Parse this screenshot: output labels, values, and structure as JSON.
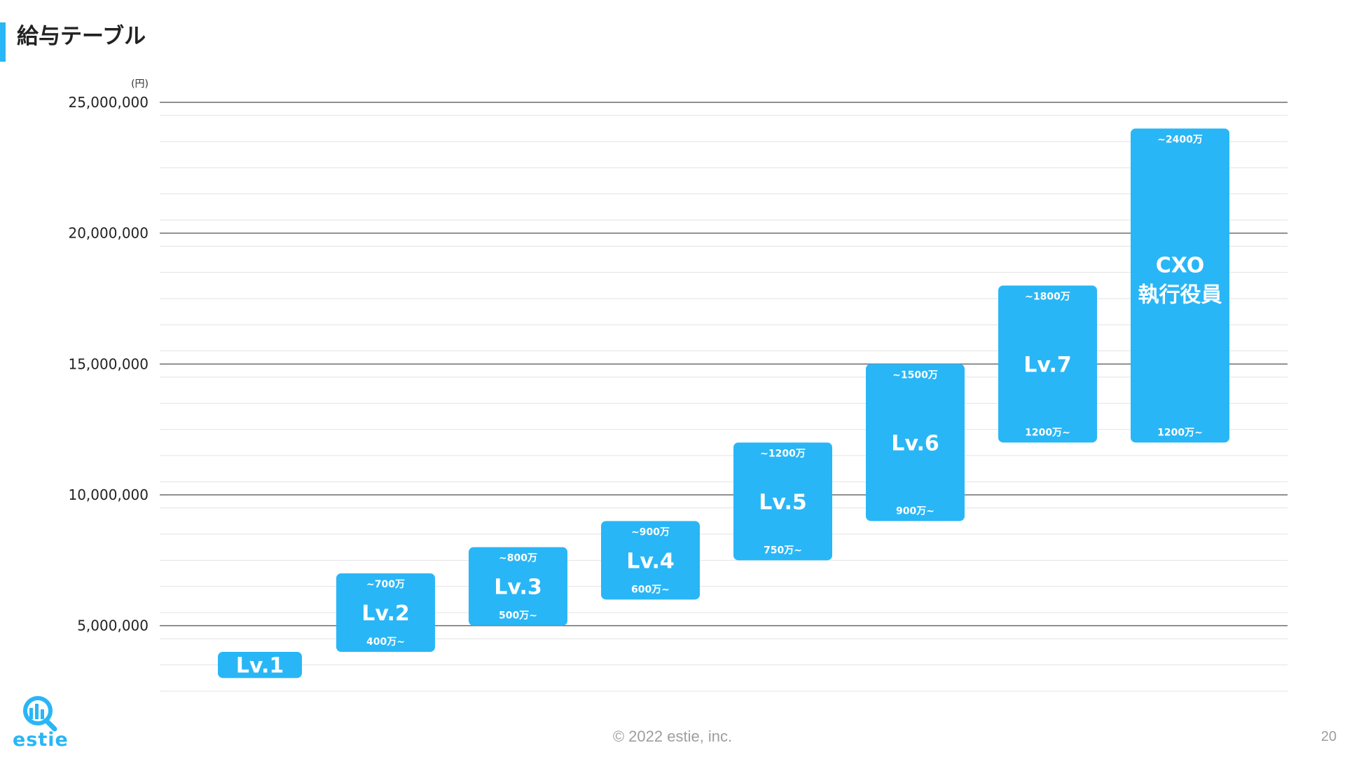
{
  "header": {
    "title": "給与テーブル"
  },
  "chart_data": {
    "type": "bar",
    "style": "floating-range",
    "unit_label": "(円)",
    "ylim": [
      2500000,
      25000000
    ],
    "yticks": [
      5000000,
      10000000,
      15000000,
      20000000,
      25000000
    ],
    "ytick_labels": [
      "5,000,000",
      "10,000,000",
      "15,000,000",
      "20,000,000",
      "25,000,000"
    ],
    "minor_step": 1000000,
    "grid": true,
    "bar_color": "#29b6f6",
    "bars": [
      {
        "label": "Lv.1",
        "low": 3000000,
        "high": 4000000,
        "low_label": "",
        "high_label": ""
      },
      {
        "label": "Lv.2",
        "low": 4000000,
        "high": 7000000,
        "low_label": "400万~",
        "high_label": "~700万"
      },
      {
        "label": "Lv.3",
        "low": 5000000,
        "high": 8000000,
        "low_label": "500万~",
        "high_label": "~800万"
      },
      {
        "label": "Lv.4",
        "low": 6000000,
        "high": 9000000,
        "low_label": "600万~",
        "high_label": "~900万"
      },
      {
        "label": "Lv.5",
        "low": 7500000,
        "high": 12000000,
        "low_label": "750万~",
        "high_label": "~1200万"
      },
      {
        "label": "Lv.6",
        "low": 9000000,
        "high": 15000000,
        "low_label": "900万~",
        "high_label": "~1500万"
      },
      {
        "label": "Lv.7",
        "low": 12000000,
        "high": 18000000,
        "low_label": "1200万~",
        "high_label": "~1800万"
      },
      {
        "label": "CXO\n執行役員",
        "low": 12000000,
        "high": 24000000,
        "low_label": "1200万~",
        "high_label": "~2400万"
      }
    ]
  },
  "brand": {
    "logo_text": "estie",
    "logo_icon": "estie-logo-icon",
    "accent_color": "#29b6f6"
  },
  "footer": {
    "copyright": "© 2022 estie, inc.",
    "page_number": "20"
  }
}
